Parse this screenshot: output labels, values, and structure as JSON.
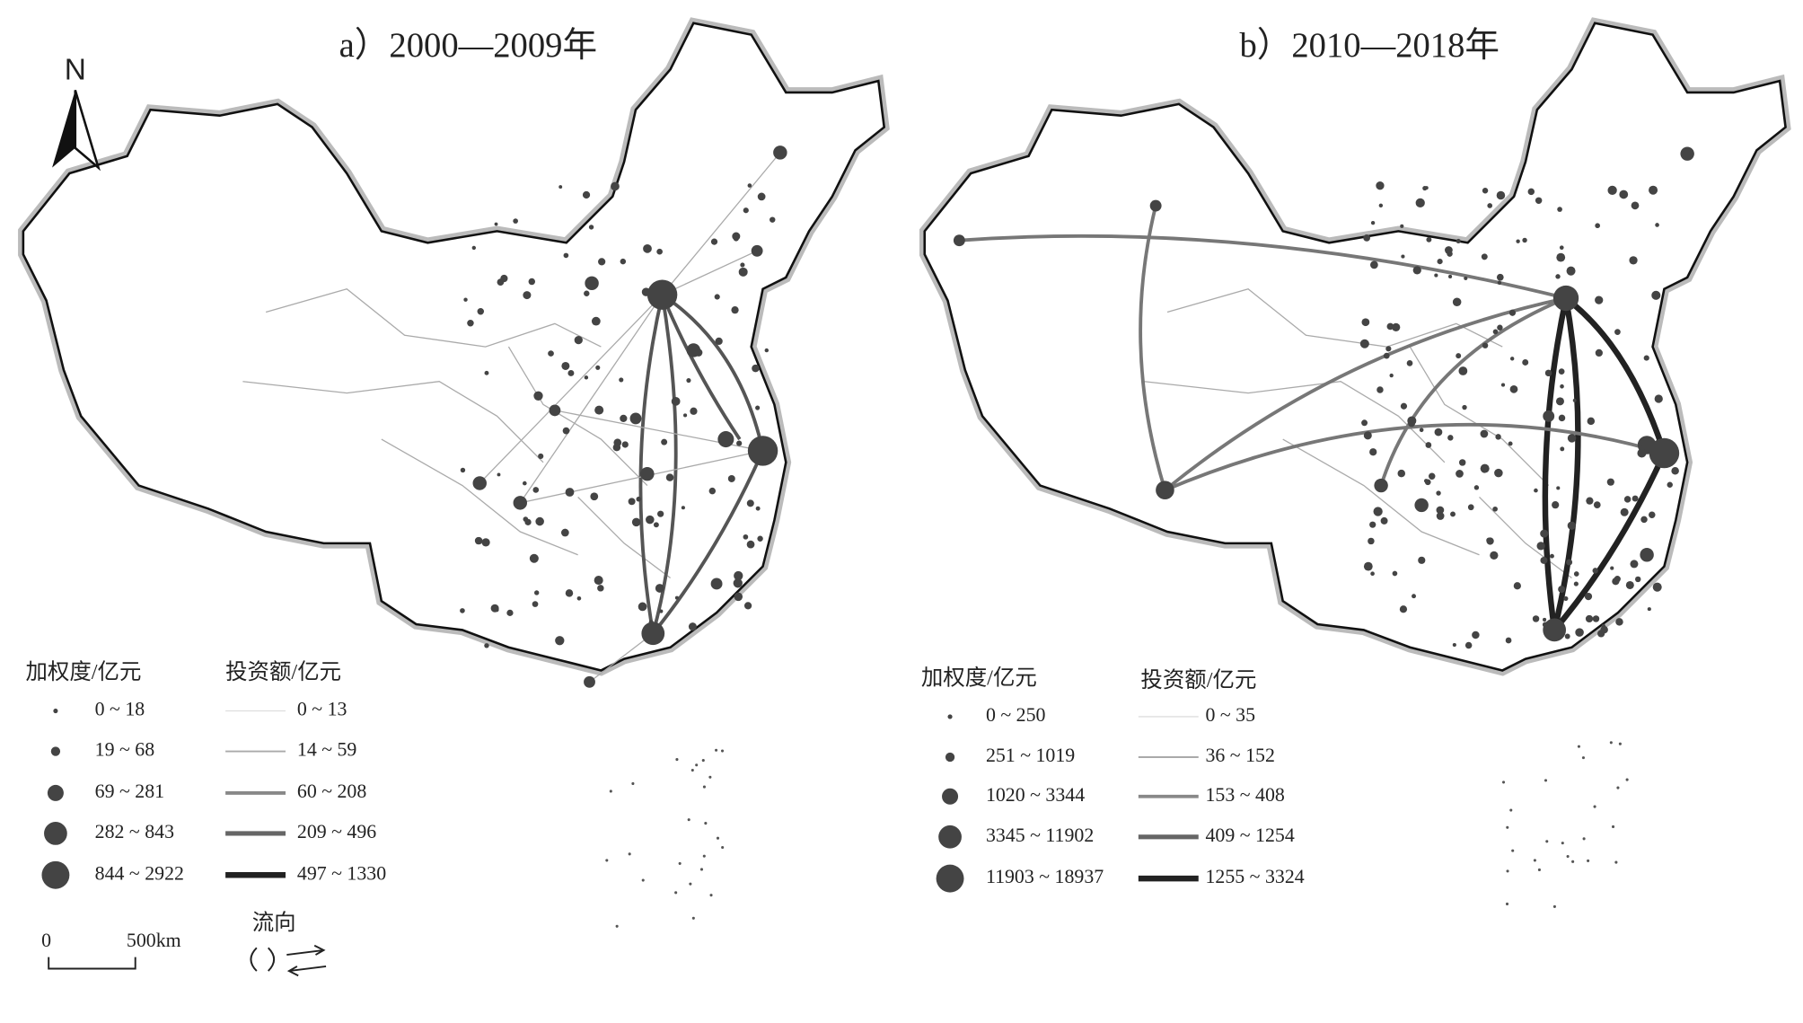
{
  "panels": [
    {
      "title": "a）2000—2009年",
      "node_legend": {
        "title": "加权度/亿元",
        "classes": [
          "0 ~ 18",
          "19 ~ 68",
          "69 ~ 281",
          "282 ~ 843",
          "844 ~ 2922"
        ]
      },
      "flow_legend": {
        "title": "投资额/亿元",
        "classes": [
          "0 ~ 13",
          "14 ~ 59",
          "60 ~ 208",
          "209 ~ 496",
          "497 ~ 1330"
        ]
      }
    },
    {
      "title": "b）2010—2018年",
      "node_legend": {
        "title": "加权度/亿元",
        "classes": [
          "0 ~ 250",
          "251 ~ 1019",
          "1020 ~ 3344",
          "3345 ~ 11902",
          "11903 ~ 18937"
        ]
      },
      "flow_legend": {
        "title": "投资额/亿元",
        "classes": [
          "0 ~ 35",
          "36 ~ 152",
          "153 ~ 408",
          "409 ~ 1254",
          "1255 ~ 3324"
        ]
      }
    }
  ],
  "north_arrow": "N",
  "scale_bar": {
    "start": "0",
    "end": "500km"
  },
  "flow_direction": "流向"
}
